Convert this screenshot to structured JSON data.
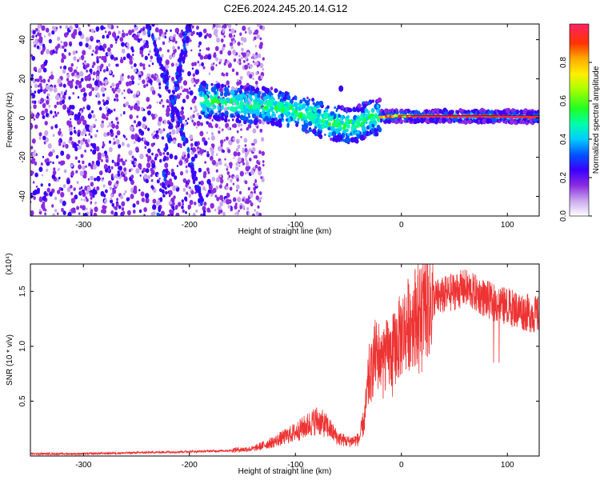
{
  "title": "C2E6.2024.245.20.14.G12",
  "colorbar": {
    "label": "Normalized spectral amplitude",
    "ticks": [
      "0.0",
      "0.2",
      "0.4",
      "0.6",
      "0.8"
    ],
    "tick_values": [
      0.0,
      0.2,
      0.4,
      0.6,
      0.8
    ],
    "range": [
      0,
      1
    ]
  },
  "chart_data": [
    {
      "type": "heatmap",
      "xlabel": "Height of straight line (km)",
      "ylabel": "Frequency (Hz)",
      "xlim": [
        -350,
        130
      ],
      "ylim": [
        -50,
        48
      ],
      "xticks": [
        -300,
        -200,
        -100,
        0,
        100
      ],
      "xtick_labels": [
        "-300",
        "-200",
        "-100",
        "0",
        "100"
      ],
      "yticks": [
        -40,
        -20,
        0,
        20,
        40
      ],
      "ytick_labels": [
        "-40",
        "-20",
        "0",
        "20",
        "40"
      ],
      "colormap": "rainbow",
      "features": {
        "dominant_frequency_track": [
          {
            "x": -190,
            "y": 9
          },
          {
            "x": -150,
            "y": 7
          },
          {
            "x": -120,
            "y": 6
          },
          {
            "x": -100,
            "y": 3
          },
          {
            "x": -80,
            "y": 0
          },
          {
            "x": -60,
            "y": -3
          },
          {
            "x": -45,
            "y": -4
          },
          {
            "x": -30,
            "y": 0
          },
          {
            "x": -10,
            "y": 1
          },
          {
            "x": 0,
            "y": 1
          },
          {
            "x": 50,
            "y": 1
          },
          {
            "x": 80,
            "y": 1
          },
          {
            "x": 130,
            "y": 0.5
          }
        ],
        "noise_region_x": [
          -350,
          -140
        ],
        "slanted_streaks": [
          {
            "x1": -240,
            "y1": 48,
            "x2": -210,
            "y2": 0,
            "x3": -185,
            "y3": -50
          },
          {
            "x1": -200,
            "y1": 48,
            "x2": -215,
            "y2": 10,
            "x3": -228,
            "y3": -50
          }
        ]
      }
    },
    {
      "type": "line",
      "xlabel": "Height of straight line (km)",
      "ylabel": "SNR (10 * v/v)",
      "yscale_note": "(x10⁴)",
      "xlim": [
        -350,
        130
      ],
      "ylim": [
        0,
        1.75
      ],
      "xticks": [
        -300,
        -200,
        -100,
        0,
        100
      ],
      "xtick_labels": [
        "-300",
        "-200",
        "-100",
        "0",
        "100"
      ],
      "yticks": [
        0.5,
        1.0,
        1.5
      ],
      "ytick_labels": [
        "0.5",
        "1.0",
        "1.5"
      ],
      "color": "#ee3333",
      "series": [
        {
          "envelope_x": [
            -350,
            -300,
            -250,
            -200,
            -160,
            -140,
            -120,
            -110,
            -100,
            -90,
            -80,
            -70,
            -60,
            -50,
            -40,
            -35,
            -30,
            -25,
            -20,
            -15,
            -10,
            -5,
            0,
            10,
            20,
            30,
            40,
            50,
            60,
            70,
            80,
            90,
            100,
            110,
            120,
            130
          ],
          "envelope_y": [
            0.02,
            0.02,
            0.03,
            0.04,
            0.05,
            0.06,
            0.12,
            0.16,
            0.2,
            0.25,
            0.3,
            0.25,
            0.15,
            0.12,
            0.14,
            0.3,
            0.7,
            0.95,
            0.95,
            0.95,
            0.95,
            1.05,
            1.15,
            1.3,
            1.4,
            1.45,
            1.48,
            1.52,
            1.55,
            1.5,
            1.45,
            1.4,
            1.38,
            1.35,
            1.32,
            1.3
          ]
        }
      ]
    }
  ]
}
